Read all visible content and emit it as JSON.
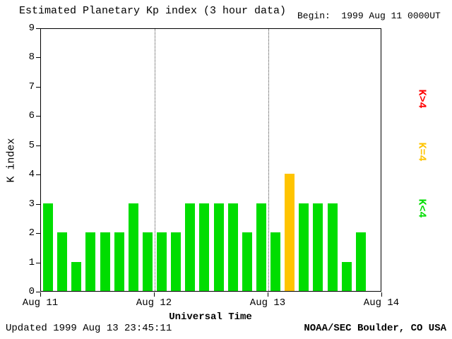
{
  "title": "Estimated Planetary Kp index (3 hour data)",
  "begin_label": "Begin:  1999 Aug 11 0000UT",
  "footer": {
    "updated": "Updated 1999 Aug 13 23:45:11",
    "source": "NOAA/SEC Boulder, CO USA"
  },
  "legend": [
    {
      "label": "K>4",
      "color": "#ff0000"
    },
    {
      "label": "K=4",
      "color": "#ffc400"
    },
    {
      "label": "K<4",
      "color": "#00dd00"
    }
  ],
  "chart_data": {
    "type": "bar",
    "title": "Estimated Planetary Kp index (3 hour data)",
    "xlabel": "Universal Time",
    "ylabel": "K index",
    "ylim": [
      0,
      9
    ],
    "y_ticks": [
      0,
      1,
      2,
      3,
      4,
      5,
      6,
      7,
      8,
      9
    ],
    "x_ticks": [
      "Aug 11",
      "Aug 12",
      "Aug 13",
      "Aug 14"
    ],
    "x_tick_hours": [
      0,
      24,
      48,
      72
    ],
    "x_range_hours": 72,
    "bar_interval_hours": 3,
    "day_lines_hours": [
      24,
      48
    ],
    "grid": "dotted vertical lines at day boundaries",
    "legend_position": "right, rotated 90deg",
    "color_rule": "green if K<4, yellow if K=4, red if K>4",
    "values": [
      3,
      2,
      1,
      2,
      2,
      2,
      3,
      2,
      2,
      2,
      3,
      3,
      3,
      3,
      2,
      3,
      2,
      4,
      3,
      3,
      3,
      1,
      2
    ]
  }
}
